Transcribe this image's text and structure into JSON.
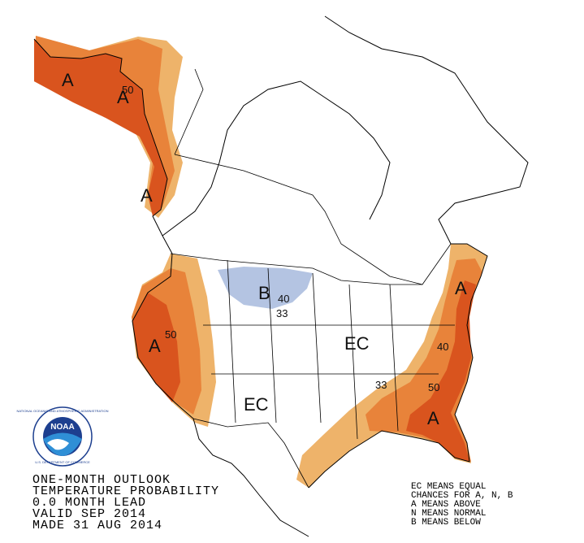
{
  "map_labels": [
    "A",
    "50",
    "A",
    "A",
    "B",
    "40",
    "33",
    "50",
    "A",
    "EC",
    "EC",
    "A",
    "40",
    "33",
    "50",
    "A"
  ],
  "logo": {
    "name": "NOAA",
    "ring_top": "NATIONAL OCEANIC AND ATMOSPHERIC ADMINISTRATION",
    "ring_bottom": "U.S. DEPARTMENT OF COMMERCE"
  },
  "info_lines": [
    "ONE-MONTH OUTLOOK",
    "TEMPERATURE PROBABILITY",
    "0.0 MONTH LEAD",
    "VALID SEP 2014",
    "MADE 31 AUG 2014"
  ],
  "legend_lines": [
    "EC MEANS EQUAL",
    "CHANCES FOR A, N, B",
    "A MEANS ABOVE",
    "N MEANS NORMAL",
    "B MEANS BELOW"
  ]
}
